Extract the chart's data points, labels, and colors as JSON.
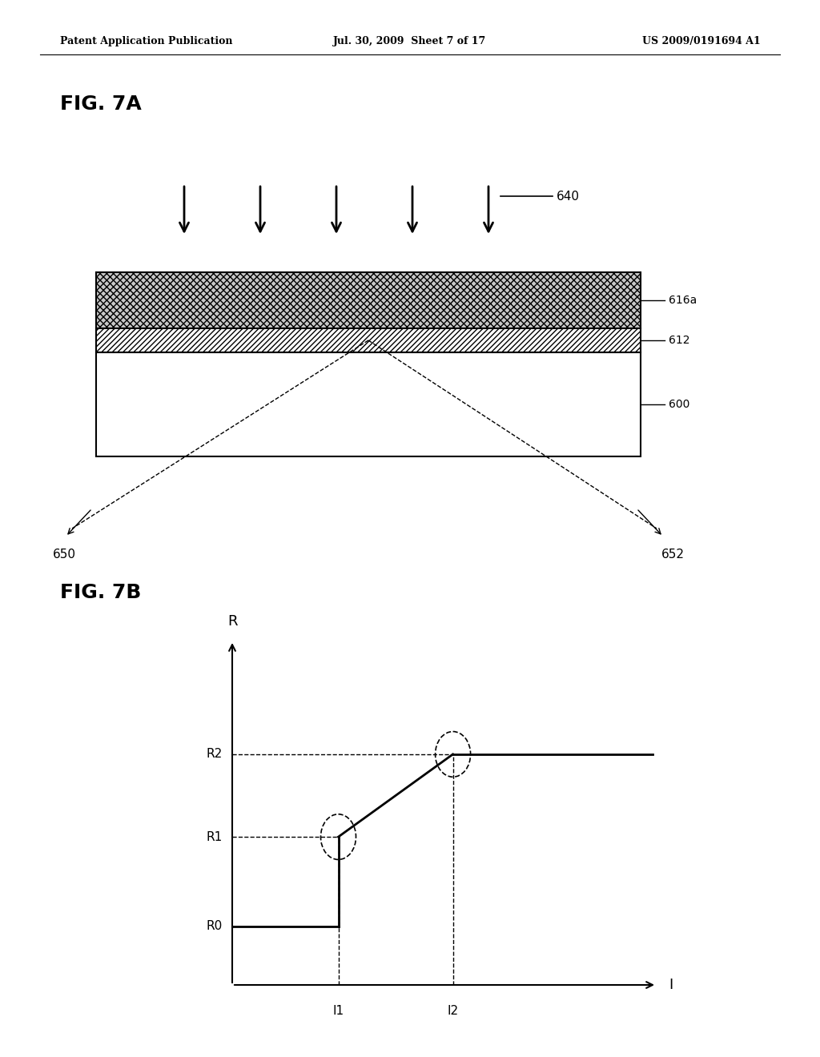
{
  "header_left": "Patent Application Publication",
  "header_mid": "Jul. 30, 2009  Sheet 7 of 17",
  "header_right": "US 2009/0191694 A1",
  "fig7a_label": "FIG. 7A",
  "fig7b_label": "FIG. 7B",
  "arrow_label": "640",
  "label_616a": "616a",
  "label_612": "612",
  "label_600": "600",
  "label_650": "650",
  "label_652": "652",
  "bg_color": "#ffffff",
  "graph_R_label": "R",
  "graph_I_label": "I",
  "graph_R0": "R0",
  "graph_R1": "R1",
  "graph_R2": "R2",
  "graph_I1": "I1",
  "graph_I2": "I2"
}
